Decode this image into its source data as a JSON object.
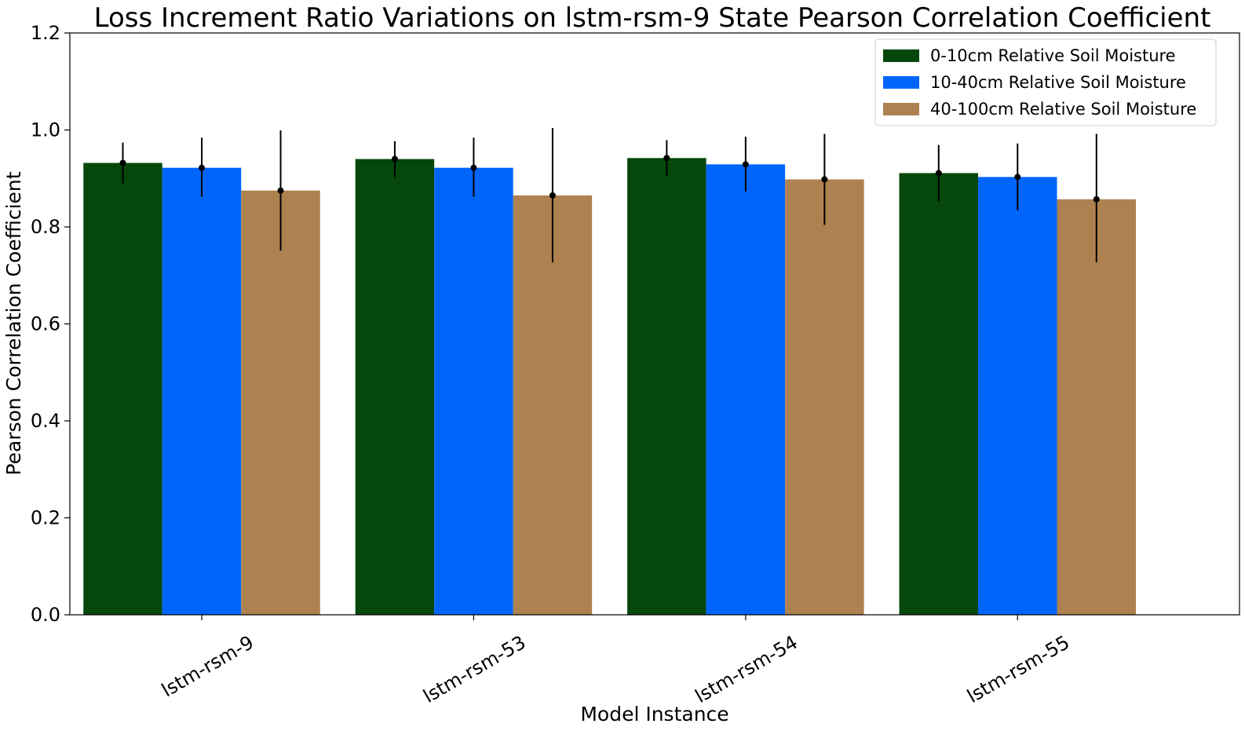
{
  "chart_data": {
    "type": "bar",
    "title": "Loss Increment Ratio Variations on lstm-rsm-9 State Pearson Correlation Coefficient",
    "xlabel": "Model Instance",
    "ylabel": "Pearson Correlation Coefficient",
    "ylim": [
      0,
      1.2
    ],
    "yticks": [
      "0.0",
      "0.2",
      "0.4",
      "0.6",
      "0.8",
      "1.0",
      "1.2"
    ],
    "categories": [
      "lstm-rsm-9",
      "lstm-rsm-53",
      "lstm-rsm-54",
      "lstm-rsm-55"
    ],
    "legend_position": "top-right",
    "grid": false,
    "series": [
      {
        "name": "0-10cm Relative Soil Moisture",
        "color": "#06470c",
        "values": [
          0.932,
          0.94,
          0.942,
          0.911
        ],
        "error_low": [
          0.89,
          0.903,
          0.905,
          0.853
        ],
        "error_high": [
          0.974,
          0.977,
          0.979,
          0.969
        ]
      },
      {
        "name": "10-40cm Relative Soil Moisture",
        "color": "#0165fc",
        "values": [
          0.922,
          0.922,
          0.929,
          0.903
        ],
        "error_low": [
          0.862,
          0.862,
          0.873,
          0.834
        ],
        "error_high": [
          0.984,
          0.984,
          0.986,
          0.972
        ]
      },
      {
        "name": "40-100cm Relative Soil Moisture",
        "color": "#ad8150",
        "values": [
          0.875,
          0.865,
          0.898,
          0.857
        ],
        "error_low": [
          0.751,
          0.727,
          0.804,
          0.727
        ],
        "error_high": [
          0.999,
          1.004,
          0.992,
          0.992
        ]
      }
    ]
  }
}
